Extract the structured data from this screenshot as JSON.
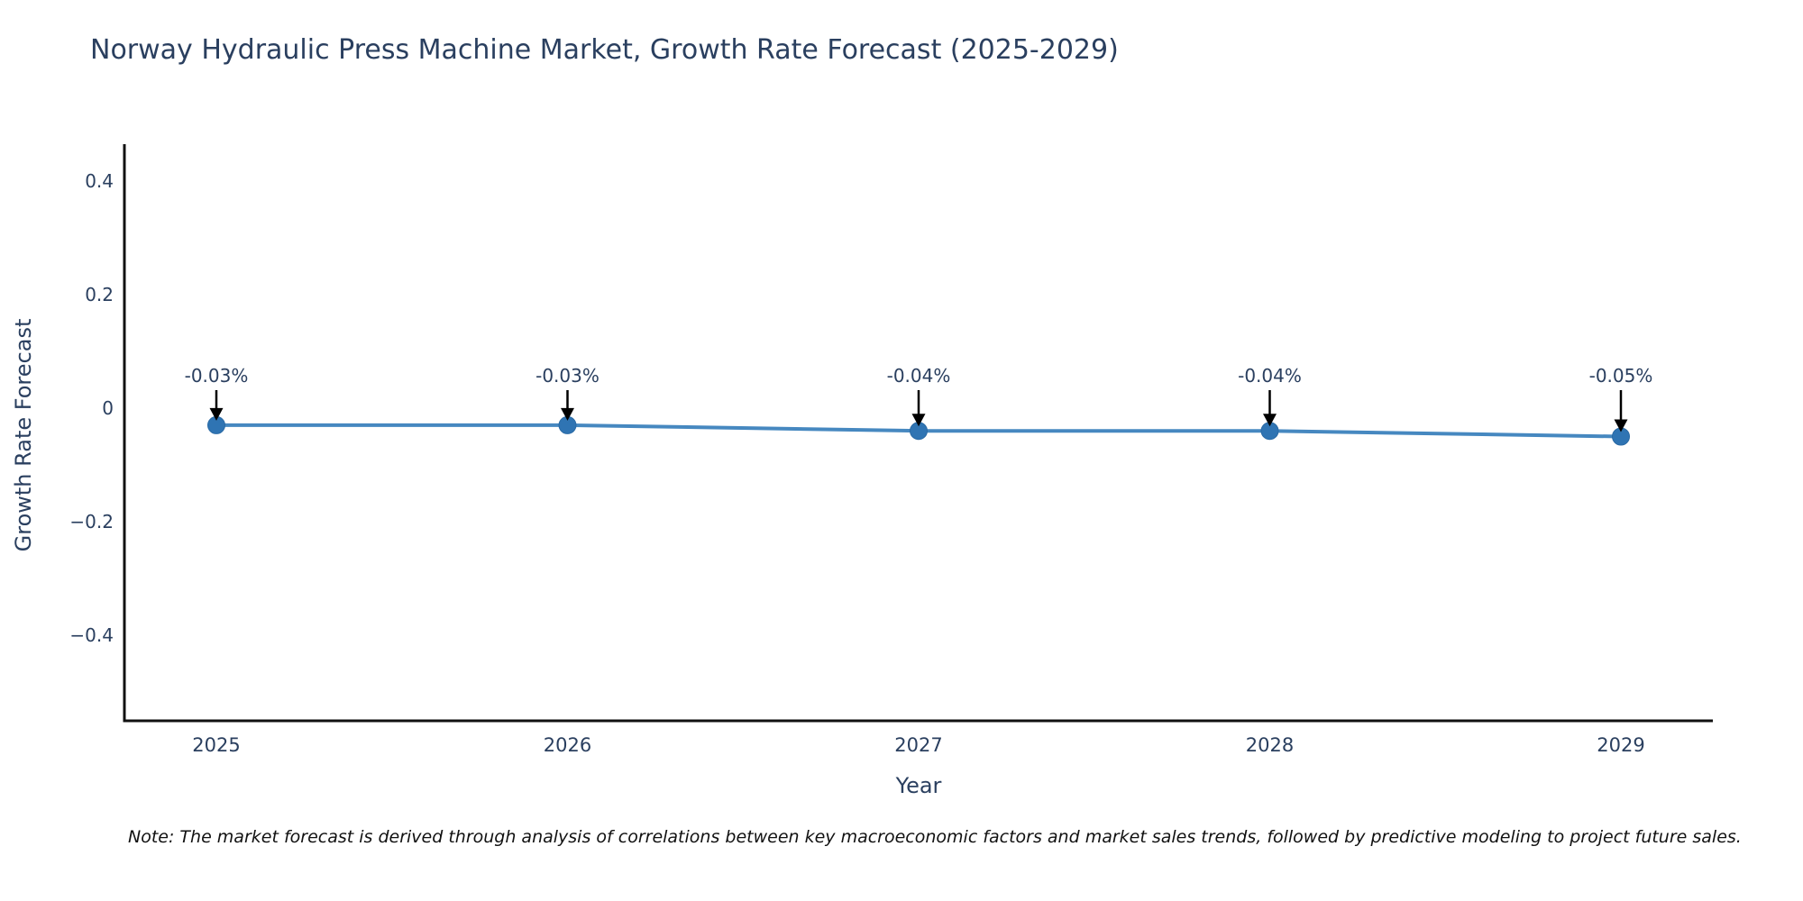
{
  "title": "Norway Hydraulic Press Machine Market, Growth Rate Forecast (2025-2029)",
  "note": "Note: The market forecast is derived through analysis of correlations between key macroeconomic factors and market sales trends, followed by predictive modeling to project future sales.",
  "colors": {
    "text": "#2a3f5f",
    "axis": "#111111",
    "line": "#4688c0",
    "marker": "#2f74b3",
    "annotation_arrow": "#000000",
    "background": "#ffffff"
  },
  "chart_data": {
    "type": "line",
    "title": "Norway Hydraulic Press Machine Market, Growth Rate Forecast (2025-2029)",
    "xlabel": "Year",
    "ylabel": "Growth Rate Forecast",
    "categories": [
      "2025",
      "2026",
      "2027",
      "2028",
      "2029"
    ],
    "series": [
      {
        "name": "Growth Rate Forecast",
        "values": [
          -0.03,
          -0.03,
          -0.04,
          -0.04,
          -0.05
        ],
        "point_labels": [
          "-0.03%",
          "-0.03%",
          "-0.04%",
          "-0.04%",
          "-0.05%"
        ]
      }
    ],
    "yticks": [
      0.4,
      0.2,
      0,
      -0.2,
      -0.4
    ],
    "ytick_labels": [
      "0.4",
      "0.2",
      "0",
      "−0.2",
      "−0.4"
    ],
    "ylim": [
      -0.55,
      0.465
    ],
    "grid": false,
    "legend_position": "none",
    "annotations_have_arrows": true
  }
}
